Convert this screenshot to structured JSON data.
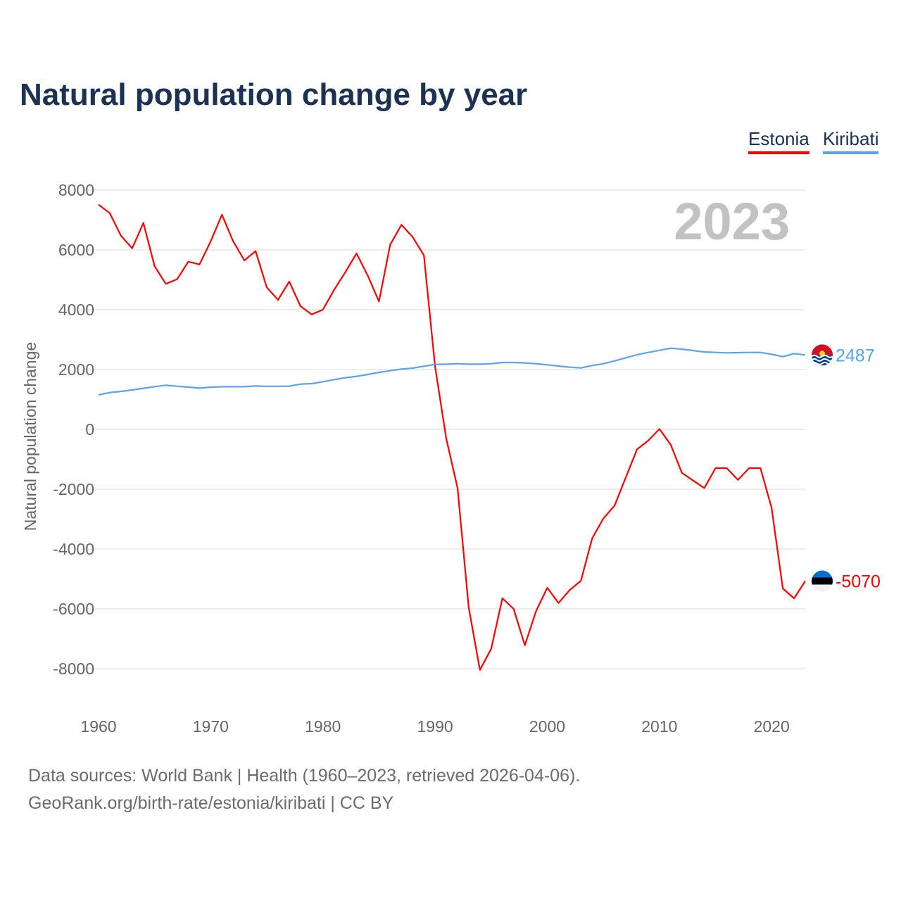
{
  "chart_data": {
    "type": "line",
    "title": "Natural population change by year",
    "xlabel": "",
    "ylabel": "Natural population change",
    "xlim": [
      1960,
      2023
    ],
    "ylim": [
      -9000,
      8000
    ],
    "yticks": [
      8000,
      6000,
      4000,
      2000,
      0,
      -2000,
      -4000,
      -6000,
      -8000
    ],
    "xticks": [
      1960,
      1970,
      1980,
      1990,
      2000,
      2010,
      2020
    ],
    "grid": true,
    "legend_placement": "top-right",
    "current_year_label": "2023",
    "x": [
      1960,
      1961,
      1962,
      1963,
      1964,
      1965,
      1966,
      1967,
      1968,
      1969,
      1970,
      1971,
      1972,
      1973,
      1974,
      1975,
      1976,
      1977,
      1978,
      1979,
      1980,
      1981,
      1982,
      1983,
      1984,
      1985,
      1986,
      1987,
      1988,
      1989,
      1990,
      1991,
      1992,
      1993,
      1994,
      1995,
      1996,
      1997,
      1998,
      1999,
      2000,
      2001,
      2002,
      2003,
      2004,
      2005,
      2006,
      2007,
      2008,
      2009,
      2010,
      2011,
      2012,
      2013,
      2014,
      2015,
      2016,
      2017,
      2018,
      2019,
      2020,
      2021,
      2022,
      2023
    ],
    "series": [
      {
        "name": "Estonia",
        "color": "#ff0000",
        "end_label": "-5070",
        "flag": "estonia-flag",
        "values": [
          7513,
          7231,
          6470,
          6055,
          6902,
          5451,
          4863,
          5019,
          5608,
          5514,
          6290,
          7176,
          6290,
          5647,
          5960,
          4745,
          4329,
          4941,
          4118,
          3843,
          4000,
          4666,
          5255,
          5882,
          5137,
          4275,
          6172,
          6839,
          6431,
          5819,
          2100,
          -314,
          -1961,
          -5961,
          -8039,
          -7333,
          -5647,
          -6000,
          -7216,
          -6078,
          -5294,
          -5804,
          -5372,
          -5059,
          -3647,
          -2980,
          -2549,
          -1608,
          -667,
          -376,
          15,
          -510,
          -1451,
          -1710,
          -1961,
          -1294,
          -1294,
          -1686,
          -1294,
          -1294,
          -2627,
          -5318,
          -5647,
          -5070
        ]
      },
      {
        "name": "Kiribati",
        "color": "#5ba3ea",
        "end_label": "2487",
        "flag": "kiribati-flag",
        "values": [
          1153,
          1231,
          1270,
          1318,
          1373,
          1428,
          1475,
          1443,
          1412,
          1380,
          1410,
          1425,
          1425,
          1425,
          1450,
          1440,
          1440,
          1445,
          1514,
          1530,
          1593,
          1663,
          1726,
          1773,
          1836,
          1906,
          1960,
          2015,
          2047,
          2110,
          2172,
          2180,
          2196,
          2180,
          2180,
          2196,
          2235,
          2235,
          2220,
          2196,
          2157,
          2118,
          2078,
          2055,
          2133,
          2196,
          2290,
          2392,
          2494,
          2572,
          2643,
          2714,
          2682,
          2635,
          2588,
          2572,
          2557,
          2565,
          2572,
          2572,
          2510,
          2431,
          2533,
          2487
        ]
      }
    ]
  },
  "footer": {
    "line1": "Data sources: World Bank | Health (1960–2023, retrieved 2026-04-06).",
    "line2": "GeoRank.org/birth-rate/estonia/kiribati | CC BY"
  }
}
